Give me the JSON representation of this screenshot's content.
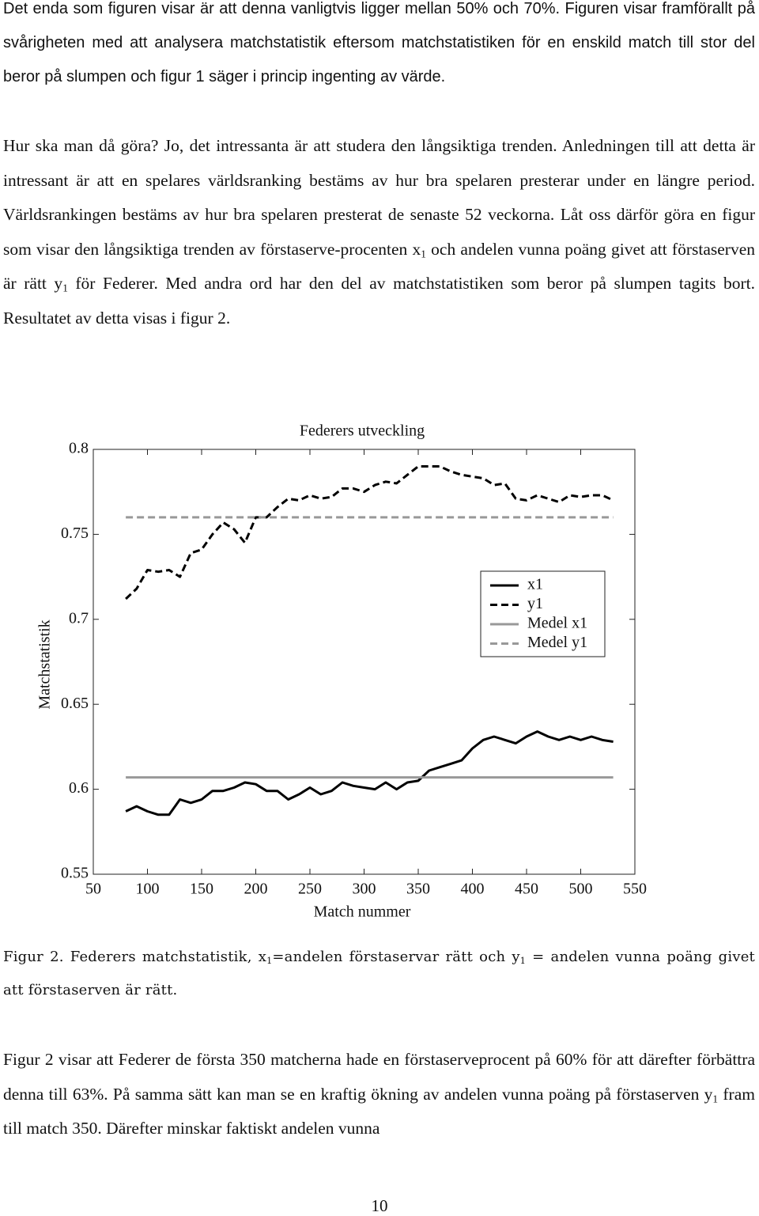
{
  "paragraphs": [
    [
      "Det enda som figuren visar är att denna vanligtvis ligger mellan 50% och 70%. Figuren visar framförallt på svårigheten med att analysera matchstatistik eftersom matchstatistiken för en enskild match till stor del beror på slumpen och figur 1 säger i princip ingenting av värde."
    ],
    [
      "Hur ska man då göra? Jo, det intressanta är att studera den långsiktiga trenden. Anledningen till att detta är intressant är att en spelares världsranking bestäms av hur bra spelaren presterar under en längre period. Världsrankingen bestäms av hur bra spelaren presterat de senaste 52 veckorna. Låt oss därför göra en figur som visar den långsiktiga trenden av förstaserve-procenten x",
      {
        "sub": "1"
      },
      " och andelen vunna poäng givet att förstaserven är rätt y",
      {
        "sub": "1"
      },
      " för Federer. Med andra ord har den del av matchstatistiken som beror på slumpen tagits bort. Resultatet av detta visas i figur 2."
    ]
  ],
  "chart_data": {
    "type": "line",
    "title": "Federers utveckling",
    "x_label": "Match nummer",
    "y_label": "Matchstatistik",
    "xlim": [
      50,
      550
    ],
    "xticks": [
      50,
      100,
      150,
      200,
      250,
      300,
      350,
      400,
      450,
      500,
      550
    ],
    "ylim": [
      0.55,
      0.8
    ],
    "yticks": [
      0.55,
      0.6,
      0.65,
      0.7,
      0.75,
      0.8
    ],
    "legend": "right",
    "series": [
      {
        "name": "x1",
        "color": "#000000",
        "style": "solid",
        "x": [
          80,
          90,
          100,
          110,
          120,
          130,
          140,
          150,
          160,
          170,
          180,
          190,
          200,
          210,
          220,
          230,
          240,
          250,
          260,
          270,
          280,
          290,
          300,
          310,
          320,
          330,
          340,
          350,
          360,
          370,
          380,
          390,
          400,
          410,
          420,
          430,
          440,
          450,
          460,
          470,
          480,
          490,
          500,
          510,
          520,
          530
        ],
        "values": [
          0.587,
          0.59,
          0.587,
          0.585,
          0.585,
          0.594,
          0.592,
          0.594,
          0.599,
          0.599,
          0.601,
          0.604,
          0.603,
          0.599,
          0.599,
          0.594,
          0.597,
          0.601,
          0.597,
          0.599,
          0.604,
          0.602,
          0.601,
          0.6,
          0.604,
          0.6,
          0.604,
          0.605,
          0.611,
          0.613,
          0.615,
          0.617,
          0.624,
          0.629,
          0.631,
          0.629,
          0.627,
          0.631,
          0.634,
          0.631,
          0.629,
          0.631,
          0.629,
          0.631,
          0.629,
          0.628
        ]
      },
      {
        "name": "y1",
        "color": "#000000",
        "style": "dashed",
        "x": [
          80,
          90,
          100,
          110,
          120,
          130,
          140,
          150,
          160,
          170,
          180,
          190,
          200,
          210,
          220,
          230,
          240,
          250,
          260,
          270,
          280,
          290,
          300,
          310,
          320,
          330,
          340,
          350,
          360,
          370,
          380,
          390,
          400,
          410,
          420,
          430,
          440,
          450,
          460,
          470,
          480,
          490,
          500,
          510,
          520,
          530
        ],
        "values": [
          0.712,
          0.718,
          0.729,
          0.728,
          0.729,
          0.725,
          0.739,
          0.741,
          0.75,
          0.757,
          0.753,
          0.745,
          0.76,
          0.76,
          0.766,
          0.771,
          0.77,
          0.773,
          0.771,
          0.772,
          0.777,
          0.777,
          0.775,
          0.779,
          0.781,
          0.78,
          0.785,
          0.79,
          0.79,
          0.79,
          0.787,
          0.785,
          0.784,
          0.783,
          0.779,
          0.78,
          0.771,
          0.77,
          0.773,
          0.771,
          0.769,
          0.773,
          0.772,
          0.773,
          0.773,
          0.77
        ]
      },
      {
        "name": "Medel x1",
        "color": "#999999",
        "style": "solid",
        "x": [
          80,
          530
        ],
        "values": [
          0.607,
          0.607
        ]
      },
      {
        "name": "Medel y1",
        "color": "#999999",
        "style": "dashed",
        "x": [
          80,
          530
        ],
        "values": [
          0.76,
          0.76
        ]
      }
    ]
  },
  "caption": [
    "Figur 2. Federers matchstatistik, x",
    {
      "sub": "1"
    },
    "=andelen förstaservar rätt och y",
    {
      "sub": "1"
    },
    " = andelen vunna poäng givet att förstaserven är rätt."
  ],
  "paragraphs_after": [
    [
      "Figur 2 visar att Federer de första 350 matcherna hade en förstaserveprocent på 60% för att därefter förbättra denna till 63%. På samma sätt kan man se en kraftig ökning av andelen vunna poäng på förstaserven y",
      {
        "sub": "1"
      },
      " fram till match 350. Därefter minskar faktiskt andelen vunna"
    ]
  ],
  "page_number": "10"
}
